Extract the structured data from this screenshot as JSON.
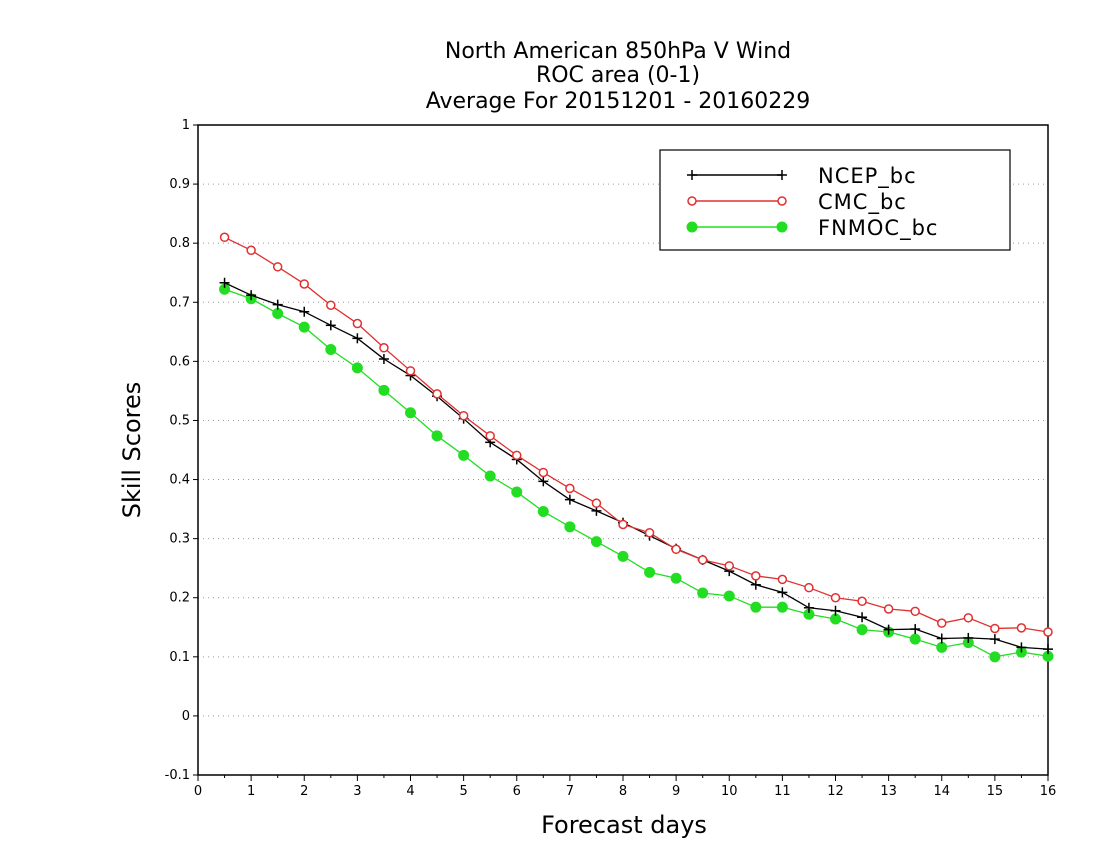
{
  "chart_data": {
    "type": "line",
    "title_lines": [
      "North American 850hPa V Wind",
      "ROC area (0-1)",
      "Average For 20151201 - 20160229"
    ],
    "xlabel": "Forecast days",
    "ylabel": "Skill Scores",
    "xlim": [
      0,
      16
    ],
    "ylim": [
      -0.1,
      1
    ],
    "x_ticks": [
      0,
      1,
      2,
      3,
      4,
      5,
      6,
      7,
      8,
      9,
      10,
      11,
      12,
      13,
      14,
      15,
      16
    ],
    "y_ticks": [
      -0.1,
      0,
      0.1,
      0.2,
      0.3,
      0.4,
      0.5,
      0.6,
      0.7,
      0.8,
      0.9,
      1
    ],
    "y_tick_labels": [
      "-0.1",
      "0",
      "0.1",
      "0.2",
      "0.3",
      "0.4",
      "0.5",
      "0.6",
      "0.7",
      "0.8",
      "0.9",
      "1"
    ],
    "grid": "horizontal dotted",
    "legend_position": "top-right",
    "x": [
      0.5,
      1,
      1.5,
      2,
      2.5,
      3,
      3.5,
      4,
      4.5,
      5,
      5.5,
      6,
      6.5,
      7,
      7.5,
      8,
      8.5,
      9,
      9.5,
      10,
      10.5,
      11,
      11.5,
      12,
      12.5,
      13,
      13.5,
      14,
      14.5,
      15,
      15.5,
      16
    ],
    "series": [
      {
        "name": "NCEP_bc",
        "color": "#000000",
        "marker": "plus",
        "values": [
          0.733,
          0.712,
          0.696,
          0.684,
          0.661,
          0.639,
          0.604,
          0.576,
          0.541,
          0.503,
          0.463,
          0.434,
          0.397,
          0.366,
          0.347,
          0.327,
          0.305,
          0.283,
          0.264,
          0.245,
          0.222,
          0.209,
          0.183,
          0.178,
          0.167,
          0.146,
          0.147,
          0.131,
          0.132,
          0.13,
          0.116,
          0.113
        ]
      },
      {
        "name": "CMC_bc",
        "color": "#e03030",
        "marker": "open-circle",
        "values": [
          0.81,
          0.788,
          0.76,
          0.731,
          0.695,
          0.664,
          0.623,
          0.584,
          0.545,
          0.508,
          0.474,
          0.441,
          0.412,
          0.385,
          0.36,
          0.324,
          0.31,
          0.282,
          0.264,
          0.254,
          0.237,
          0.231,
          0.217,
          0.2,
          0.194,
          0.181,
          0.177,
          0.157,
          0.166,
          0.148,
          0.149,
          0.142
        ]
      },
      {
        "name": "FNMOC_bc",
        "color": "#22dd22",
        "marker": "filled-circle",
        "values": [
          0.722,
          0.706,
          0.681,
          0.658,
          0.62,
          0.589,
          0.551,
          0.513,
          0.474,
          0.441,
          0.406,
          0.379,
          0.346,
          0.32,
          0.295,
          0.27,
          0.243,
          0.233,
          0.208,
          0.203,
          0.184,
          0.184,
          0.172,
          0.164,
          0.146,
          0.142,
          0.13,
          0.116,
          0.124,
          0.1,
          0.108,
          0.101
        ]
      }
    ]
  }
}
